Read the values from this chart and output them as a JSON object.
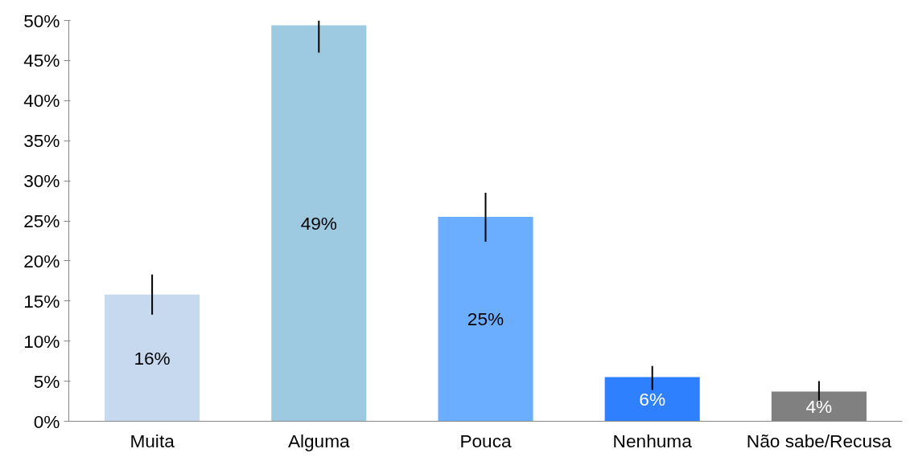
{
  "chart_data": {
    "type": "bar",
    "categories": [
      "Muita",
      "Alguma",
      "Pouca",
      "Nenhuma",
      "Não sabe/Recusa"
    ],
    "values": [
      15.8,
      49.4,
      25.5,
      5.5,
      3.7
    ],
    "colors": [
      "#c6d9ee",
      "#9ecae1",
      "#6baeff",
      "#2f80ff",
      "#808080"
    ],
    "errors": [
      [
        13.3,
        18.3
      ],
      [
        46.0,
        50.0
      ],
      [
        22.4,
        28.5
      ],
      [
        3.9,
        6.9
      ],
      [
        2.3,
        5.0
      ]
    ],
    "value_labels": [
      "16%",
      "49%",
      "25%",
      "6%",
      "4%"
    ],
    "ylim": [
      0,
      50
    ],
    "yticks": [
      {
        "value": 0,
        "label": "0%"
      },
      {
        "value": 5,
        "label": "5%"
      },
      {
        "value": 10,
        "label": "10%"
      },
      {
        "value": 15,
        "label": "15%"
      },
      {
        "value": 20,
        "label": "20%"
      },
      {
        "value": 25,
        "label": "25%"
      },
      {
        "value": 30,
        "label": "30%"
      },
      {
        "value": 35,
        "label": "35%"
      },
      {
        "value": 40,
        "label": "40%"
      },
      {
        "value": 45,
        "label": "45%"
      },
      {
        "value": 50,
        "label": "50%"
      }
    ],
    "grid": false
  }
}
